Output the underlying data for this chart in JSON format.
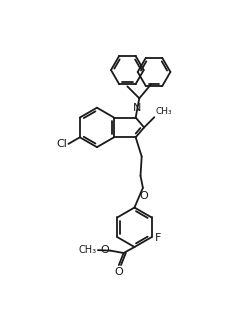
{
  "background_color": "#ffffff",
  "line_color": "#1a1a1a",
  "line_width": 1.3,
  "font_size": 7.5,
  "figsize": [
    2.42,
    3.15
  ],
  "dpi": 100,
  "xlim": [
    -1.5,
    8.5
  ],
  "ylim": [
    -1.0,
    11.5
  ]
}
